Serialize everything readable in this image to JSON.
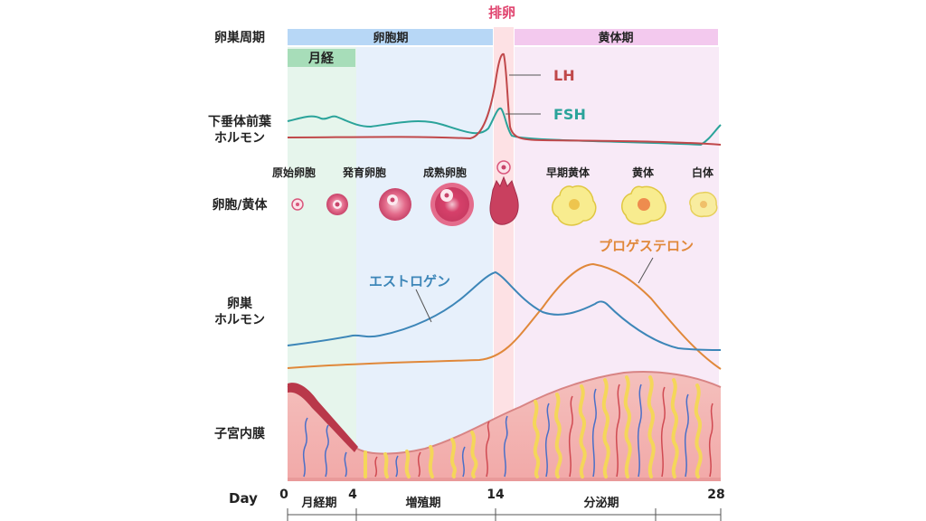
{
  "title_ovulation": "排卵",
  "row_labels": {
    "cycle": "卵巣周期",
    "pituitary_line1": "下垂体前葉",
    "pituitary_line2": "ホルモン",
    "follicle": "卵胞/黄体",
    "ovarian_line1": "卵巣",
    "ovarian_line2": "ホルモン",
    "endometrium": "子宮内膜"
  },
  "phases": {
    "follicular": "卵胞期",
    "luteal": "黄体期",
    "menstruation": "月経"
  },
  "hormones": {
    "lh": "LH",
    "fsh": "FSH",
    "estrogen": "エストロゲン",
    "progesterone": "プロゲステロン"
  },
  "stages": [
    "原始卵胞",
    "発育卵胞",
    "成熟卵胞",
    "早期黄体",
    "黄体",
    "白体"
  ],
  "axis": {
    "label": "Day",
    "ticks": [
      "0",
      "4",
      "14",
      "28"
    ],
    "phases": [
      "月経期",
      "増殖期",
      "分泌期"
    ]
  },
  "colors": {
    "lh": "#c0484a",
    "fsh": "#2aa39a",
    "estrogen": "#3d86b8",
    "progesterone": "#e0883a",
    "ovulation": "#e0446f",
    "menstrual_bg": "#e6f5ec",
    "follicular_bg": "#e7f0fb",
    "luteal_bg": "#f8eaf7"
  }
}
